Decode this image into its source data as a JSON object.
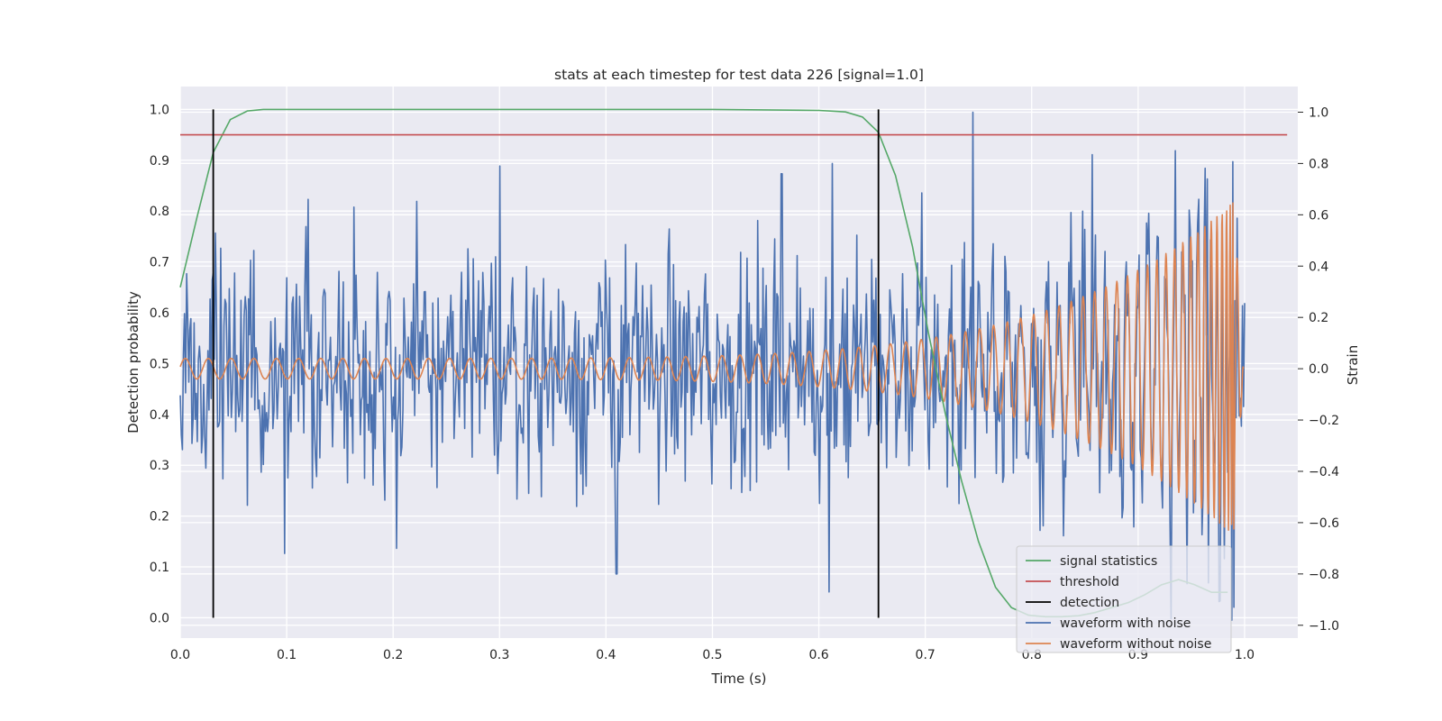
{
  "chart_data": {
    "type": "line",
    "title": "stats at each timestep for test data 226 [signal=1.0]",
    "xlabel": "Time (s)",
    "ylabel": "Detection probability",
    "y2label": "Strain",
    "xlim": [
      0.0,
      1.05
    ],
    "ylim": [
      -0.04,
      1.045
    ],
    "y2lim": [
      -1.05,
      1.1
    ],
    "grid": true,
    "legend_position": "lower-right",
    "x_ticks": [
      "0.0",
      "0.1",
      "0.2",
      "0.3",
      "0.4",
      "0.5",
      "0.6",
      "0.7",
      "0.8",
      "0.9",
      "1.0"
    ],
    "y_ticks": [
      "0.0",
      "0.1",
      "0.2",
      "0.3",
      "0.4",
      "0.5",
      "0.6",
      "0.7",
      "0.8",
      "0.9",
      "1.0"
    ],
    "y2_ticks": [
      "−1.0",
      "−0.8",
      "−0.6",
      "−0.4",
      "−0.2",
      "0.0",
      "0.2",
      "0.4",
      "0.6",
      "0.8",
      "1.0"
    ],
    "series": [
      {
        "name": "signal statistics",
        "axis": "left",
        "color": "#55a868",
        "x": [
          0.0,
          0.016,
          0.031,
          0.047,
          0.063,
          0.078,
          0.094,
          0.109,
          0.2,
          0.3,
          0.4,
          0.5,
          0.6,
          0.625,
          0.641,
          0.656,
          0.672,
          0.688,
          0.703,
          0.719,
          0.734,
          0.75,
          0.766,
          0.781,
          0.797,
          0.813,
          0.828,
          0.844,
          0.859,
          0.875,
          0.891,
          0.906,
          0.922,
          0.938,
          0.953,
          0.969,
          0.984
        ],
        "y": [
          0.65,
          0.79,
          0.915,
          0.98,
          0.997,
          1.0,
          1.0,
          1.0,
          1.0,
          1.0,
          1.0,
          1.0,
          0.998,
          0.995,
          0.985,
          0.955,
          0.87,
          0.73,
          0.56,
          0.4,
          0.27,
          0.15,
          0.06,
          0.02,
          0.005,
          0.002,
          0.002,
          0.004,
          0.01,
          0.02,
          0.03,
          0.045,
          0.065,
          0.075,
          0.065,
          0.05,
          0.05
        ]
      },
      {
        "name": "threshold",
        "axis": "left",
        "color": "#c44e52",
        "x": [
          0.0,
          1.04
        ],
        "y": [
          0.95,
          0.95
        ]
      },
      {
        "name": "detection",
        "axis": "left",
        "color": "#000000",
        "type": "vlines",
        "x": [
          0.031,
          0.656
        ],
        "ymin": 0.0,
        "ymax": 1.0
      },
      {
        "name": "waveform with noise",
        "axis": "right",
        "color": "#4c72b0",
        "n_points": 1000,
        "noise_sigma": 0.22,
        "peaks": [
          [
            0.745,
            1.0
          ],
          [
            0.935,
            0.85
          ],
          [
            0.3,
            0.79
          ],
          [
            0.613,
            0.8
          ],
          [
            0.565,
            0.76
          ],
          [
            0.965,
            0.74
          ],
          [
            0.12,
            0.66
          ],
          [
            0.163,
            0.63
          ],
          [
            0.61,
            -0.87
          ],
          [
            0.41,
            -0.8
          ],
          [
            0.99,
            -0.93
          ],
          [
            0.098,
            -0.72
          ],
          [
            0.203,
            -0.7
          ]
        ]
      },
      {
        "name": "waveform without noise",
        "axis": "right",
        "color": "#dd8452",
        "x_end": 0.99,
        "cycles": 70,
        "amp_start": 0.04,
        "amp_end": 0.65,
        "x_ringdown_end": 0.999
      }
    ]
  }
}
